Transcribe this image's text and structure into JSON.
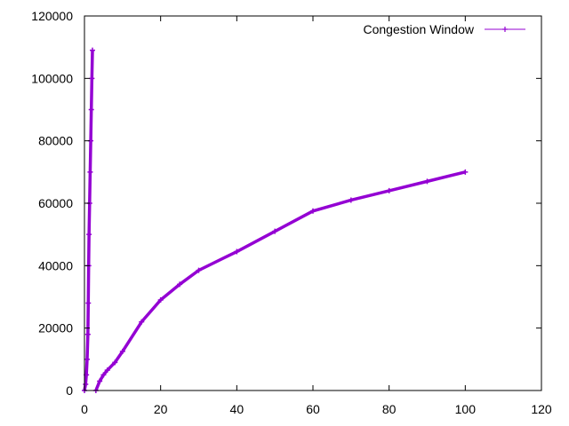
{
  "chart_data": {
    "type": "line",
    "xlim": [
      0,
      120
    ],
    "ylim": [
      0,
      120000
    ],
    "x_ticks": [
      0,
      20,
      40,
      60,
      80,
      100,
      120
    ],
    "y_ticks": [
      0,
      20000,
      40000,
      60000,
      80000,
      100000,
      120000
    ],
    "x_tick_labels": [
      "0",
      "20",
      "40",
      "60",
      "80",
      "100",
      "120"
    ],
    "y_tick_labels": [
      "0",
      "20000",
      "40000",
      "60000",
      "80000",
      "100000",
      "120000"
    ],
    "grid": false,
    "legend_position": "top-right",
    "series": [
      {
        "name": "Congestion Window",
        "color": "#9400d3",
        "marker": "plus",
        "segments": [
          [
            [
              0.0,
              0
            ],
            [
              0.3,
              2000
            ],
            [
              0.5,
              5000
            ],
            [
              0.7,
              10000
            ],
            [
              0.9,
              18000
            ],
            [
              1.0,
              28000
            ],
            [
              1.1,
              40000
            ],
            [
              1.2,
              50000
            ],
            [
              1.35,
              60000
            ],
            [
              1.5,
              70000
            ],
            [
              1.65,
              80000
            ],
            [
              1.8,
              90000
            ],
            [
              1.95,
              100000
            ],
            [
              2.1,
              109000
            ]
          ],
          [
            [
              3.0,
              0
            ],
            [
              4.0,
              3000
            ],
            [
              5.0,
              5000
            ],
            [
              6.0,
              6500
            ],
            [
              8.0,
              9000
            ],
            [
              10.0,
              12500
            ],
            [
              15.0,
              22000
            ],
            [
              20.0,
              29000
            ],
            [
              25.0,
              34000
            ],
            [
              30.0,
              38500
            ],
            [
              40.0,
              44500
            ],
            [
              50.0,
              51000
            ],
            [
              60.0,
              57500
            ],
            [
              70.0,
              61000
            ],
            [
              80.0,
              64000
            ],
            [
              90.0,
              67000
            ],
            [
              100.0,
              70000
            ]
          ]
        ]
      }
    ]
  }
}
